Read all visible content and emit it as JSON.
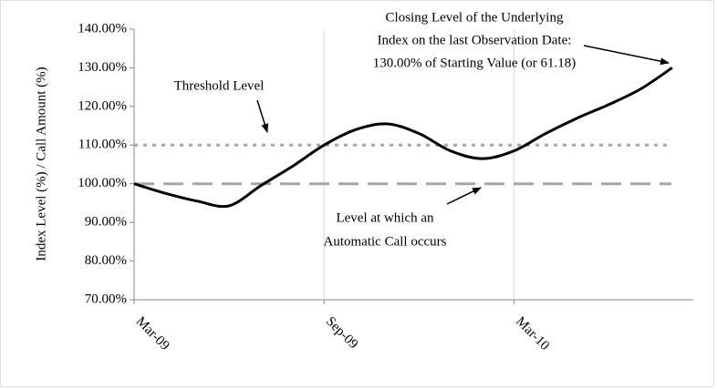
{
  "chart_data": {
    "type": "line",
    "y_label": "Index Level (%) / Call Amount (%)",
    "categories": [
      "Mar-09",
      null,
      null,
      null,
      null,
      null,
      "Sep-09",
      null,
      null,
      null,
      null,
      null,
      "Mar-10",
      null,
      null,
      null,
      null,
      null
    ],
    "series": [
      {
        "color": "#000000",
        "values": [
          100,
          97.5,
          95.5,
          94.3,
          99.5,
          104.5,
          110,
          114,
          115.5,
          113,
          108.5,
          106.5,
          108.5,
          113,
          117,
          120.5,
          124.5,
          130
        ]
      }
    ],
    "reference_lines": [
      {
        "value": 110,
        "style": "dotted",
        "color": "#a6a6a6"
      },
      {
        "value": 100,
        "style": "dashed",
        "color": "#a6a6a6"
      }
    ],
    "ylim": [
      70,
      140
    ],
    "yticks": [
      {
        "value": 70,
        "label": "70.00%"
      },
      {
        "value": 80,
        "label": "80.00%"
      },
      {
        "value": 90,
        "label": "90.00%"
      },
      {
        "value": 100,
        "label": "100.00%"
      },
      {
        "value": 110,
        "label": "110.00%"
      },
      {
        "value": 120,
        "label": "120.00%"
      },
      {
        "value": 130,
        "label": "130.00%"
      },
      {
        "value": 140,
        "label": "140.00%"
      }
    ],
    "xgrid": true,
    "annotations": [
      {
        "lines": [
          "Threshold Level"
        ]
      },
      {
        "lines": [
          "Level at which an",
          "Automatic Call occurs"
        ]
      },
      {
        "lines": [
          "Closing Level of the Underlying",
          "Index on the last Observation Date:",
          "130.00% of Starting Value (or 61.18)"
        ]
      }
    ]
  }
}
